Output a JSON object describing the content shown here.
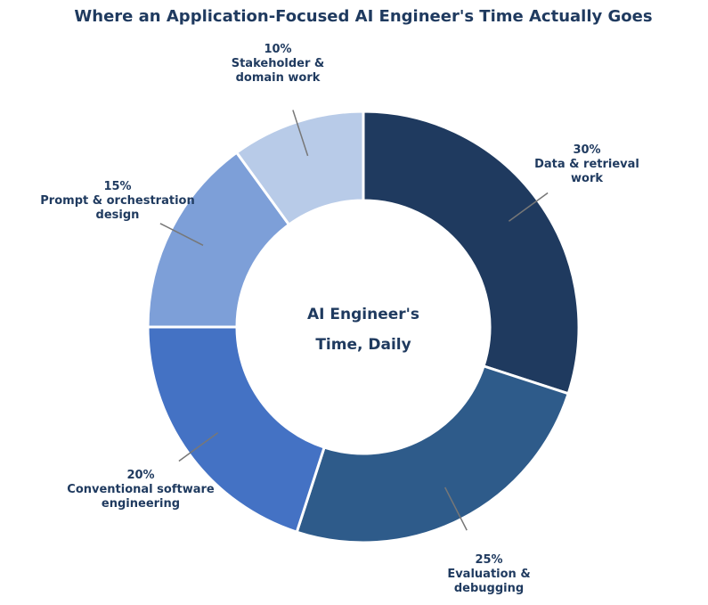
{
  "chart_data": {
    "type": "pie",
    "donut": true,
    "title": "Where an Application-Focused AI Engineer's Time Actually Goes",
    "center_label": [
      "AI Engineer's",
      "Time, Daily"
    ],
    "unit": "%",
    "slices": [
      {
        "label": "Data & retrieval work",
        "value": 30,
        "color": "#1f3a5f",
        "label_lines": [
          "30%",
          "Data & retrieval",
          "work"
        ]
      },
      {
        "label": "Evaluation & debugging",
        "value": 25,
        "color": "#2e5b8a",
        "label_lines": [
          "25%",
          "Evaluation &",
          "debugging"
        ]
      },
      {
        "label": "Conventional software engineering",
        "value": 20,
        "color": "#4472c4",
        "label_lines": [
          "20%",
          "Conventional software",
          "engineering"
        ]
      },
      {
        "label": "Prompt & orchestration design",
        "value": 15,
        "color": "#7d9fd8",
        "label_lines": [
          "15%",
          "Prompt & orchestration",
          "design"
        ]
      },
      {
        "label": "Stakeholder & domain work",
        "value": 10,
        "color": "#b8cbe8",
        "label_lines": [
          "10%",
          "Stakeholder &",
          "domain work"
        ]
      }
    ],
    "start_angle_deg": 90,
    "direction": "clockwise"
  },
  "colors": {
    "text": "#1f3a5f",
    "leader": "#777777",
    "slice_border": "#ffffff"
  }
}
